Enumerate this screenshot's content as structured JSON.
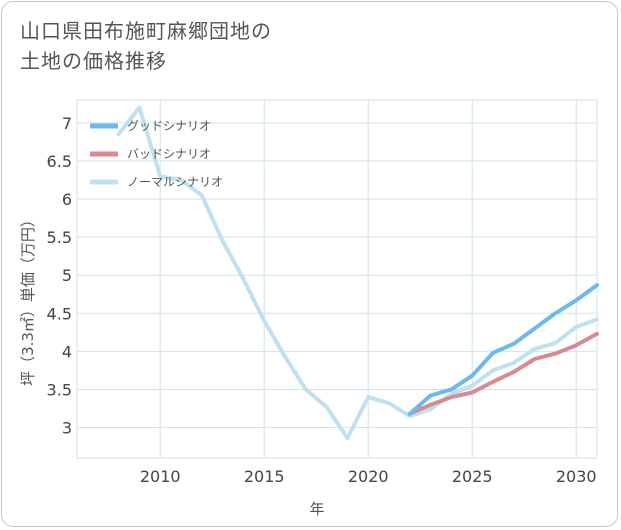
{
  "title": {
    "line1": "山口県田布施町麻郷団地の",
    "line2": "土地の価格推移"
  },
  "colors": {
    "good": "#6cb9ee",
    "bad": "#d98990",
    "normal": "#bfe0ef",
    "grid": "#cfe2ee",
    "axis": "#444444"
  },
  "chart_data": {
    "type": "line",
    "title": "山口県田布施町麻郷団地の土地の価格推移",
    "xlabel": "年",
    "ylabel": "坪（3.3㎡）単価（万円）",
    "xlim": [
      2006,
      2031
    ],
    "ylim": [
      2.6,
      7.3
    ],
    "xticks": [
      2010,
      2015,
      2020,
      2025,
      2030
    ],
    "yticks": [
      3,
      3.5,
      4,
      4.5,
      5,
      5.5,
      6,
      6.5,
      7
    ],
    "xtick_labels": [
      "2010",
      "2015",
      "2020",
      "2025",
      "2030"
    ],
    "ytick_labels": [
      "3",
      "3.5",
      "4",
      "4.5",
      "5",
      "5.5",
      "6",
      "6.5",
      "7"
    ],
    "grid": true,
    "legend_position": "top-left",
    "series": [
      {
        "name": "グッドシナリオ",
        "key": "good",
        "x": [
          2022,
          2023,
          2024,
          2025,
          2026,
          2027,
          2028,
          2029,
          2030,
          2031
        ],
        "values": [
          3.18,
          3.42,
          3.5,
          3.68,
          3.98,
          4.1,
          4.3,
          4.5,
          4.67,
          4.87
        ]
      },
      {
        "name": "バッドシナリオ",
        "key": "bad",
        "x": [
          2022,
          2023,
          2024,
          2025,
          2026,
          2027,
          2028,
          2029,
          2030,
          2031
        ],
        "values": [
          3.18,
          3.3,
          3.4,
          3.46,
          3.6,
          3.73,
          3.9,
          3.97,
          4.08,
          4.23
        ]
      },
      {
        "name": "ノーマルシナリオ",
        "key": "normal",
        "x": [
          2008,
          2009,
          2010,
          2011,
          2012,
          2013,
          2014,
          2015,
          2016,
          2017,
          2018,
          2019,
          2020,
          2021,
          2022,
          2023,
          2024,
          2025,
          2026,
          2027,
          2028,
          2029,
          2030,
          2031
        ],
        "values": [
          6.85,
          7.2,
          6.3,
          6.25,
          6.05,
          5.45,
          4.95,
          4.4,
          3.93,
          3.5,
          3.27,
          2.86,
          3.4,
          3.32,
          3.15,
          3.24,
          3.44,
          3.55,
          3.75,
          3.85,
          4.03,
          4.11,
          4.32,
          4.42
        ]
      }
    ]
  }
}
